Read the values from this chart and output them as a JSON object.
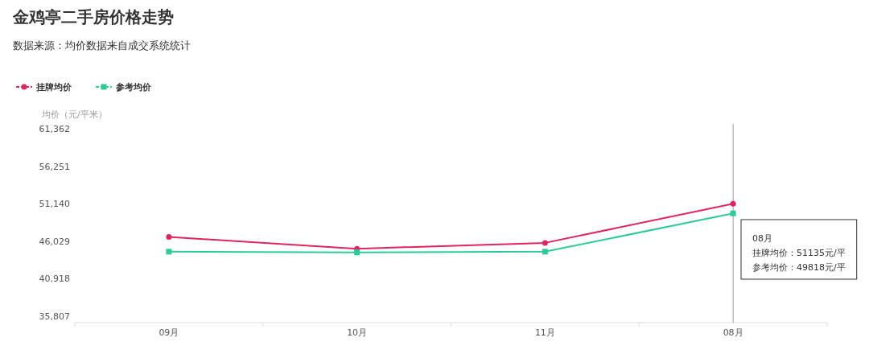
{
  "chart_data": {
    "type": "line",
    "title": "金鸡亭二手房价格走势",
    "subtitle": "数据来源：均价数据来自成交系统统计",
    "ylabel": "均价（元/平米）",
    "categories": [
      "09月",
      "10月",
      "11月",
      "08月"
    ],
    "series": [
      {
        "name": "挂牌均价",
        "color": "#e0245e",
        "marker": "circle",
        "values": [
          46600,
          45000,
          45800,
          51135
        ]
      },
      {
        "name": "参考均价",
        "color": "#2ecc94",
        "marker": "square",
        "values": [
          44600,
          44500,
          44600,
          49818
        ]
      }
    ],
    "ylim": [
      35807,
      61362
    ],
    "yticks": [
      {
        "value": 35807,
        "label": "35,807"
      },
      {
        "value": 40918,
        "label": "40,918"
      },
      {
        "value": 46029,
        "label": "46,029"
      },
      {
        "value": 51140,
        "label": "51,140"
      },
      {
        "value": 56251,
        "label": "56,251"
      },
      {
        "value": 61362,
        "label": "61,362"
      }
    ],
    "ref_lines": [
      {
        "axis": "x",
        "value": "08月",
        "color": "#999999"
      }
    ],
    "annotations": [
      "08月",
      "挂牌均价：51135元/平",
      "参考均价：49818元/平"
    ],
    "legend": "top left",
    "grid": false
  }
}
